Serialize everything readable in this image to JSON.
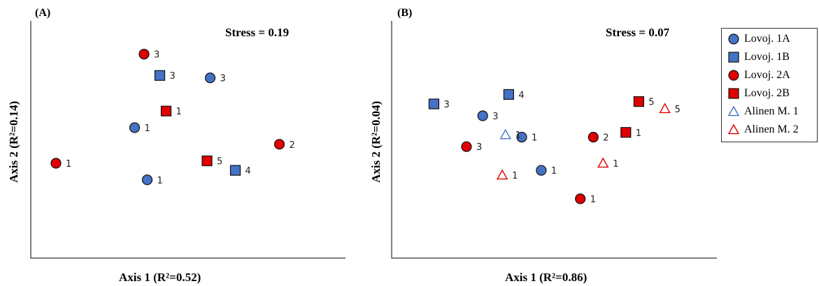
{
  "panels": [
    {
      "label": "(A)",
      "stress": "Stress = 0.19",
      "xlabel": "Axis 1 (R²=0.52)",
      "ylabel": "Axis 2 (R²=0.14)"
    },
    {
      "label": "(B)",
      "stress": "Stress = 0.07",
      "xlabel": "Axis 1 (R²=0.86)",
      "ylabel": "Axis 2 (R²=0.04)"
    }
  ],
  "legend": [
    {
      "label": "Lovoj. 1A",
      "shape": "circle",
      "color": "#4472C4",
      "filled": true
    },
    {
      "label": "Lovoj. 1B",
      "shape": "square",
      "color": "#4472C4",
      "filled": true
    },
    {
      "label": "Lovoj. 2A",
      "shape": "circle",
      "color": "#E00000",
      "filled": true
    },
    {
      "label": "Lovoj. 2B",
      "shape": "square",
      "color": "#E00000",
      "filled": true
    },
    {
      "label": "Alinen M. 1",
      "shape": "triangle",
      "color": "#4472C4",
      "filled": false
    },
    {
      "label": "Alinen M. 2",
      "shape": "triangle",
      "color": "#E00000",
      "filled": false
    }
  ],
  "chart_data": [
    {
      "type": "scatter",
      "title": "(A)",
      "annotation": "Stress = 0.19",
      "xlabel": "Axis 1 (R²=0.52)",
      "ylabel": "Axis 2 (R²=0.14)",
      "xlim": [
        0,
        100
      ],
      "ylim": [
        0,
        100
      ],
      "grid": false,
      "series": [
        {
          "name": "Lovoj. 1A",
          "points": [
            {
              "x": 57,
              "y": 76,
              "label": "3"
            },
            {
              "x": 33,
              "y": 55,
              "label": "1"
            },
            {
              "x": 37,
              "y": 33,
              "label": "1"
            }
          ]
        },
        {
          "name": "Lovoj. 1B",
          "points": [
            {
              "x": 41,
              "y": 77,
              "label": "3"
            },
            {
              "x": 65,
              "y": 37,
              "label": "4"
            }
          ]
        },
        {
          "name": "Lovoj. 2A",
          "points": [
            {
              "x": 36,
              "y": 86,
              "label": "3"
            },
            {
              "x": 8,
              "y": 40,
              "label": "1"
            },
            {
              "x": 79,
              "y": 48,
              "label": "2"
            }
          ]
        },
        {
          "name": "Lovoj. 2B",
          "points": [
            {
              "x": 43,
              "y": 62,
              "label": "1"
            },
            {
              "x": 56,
              "y": 41,
              "label": "5"
            }
          ]
        }
      ]
    },
    {
      "type": "scatter",
      "title": "(B)",
      "annotation": "Stress = 0.07",
      "xlabel": "Axis 1 (R²=0.86)",
      "ylabel": "Axis 2 (R²=0.04)",
      "xlim": [
        0,
        100
      ],
      "ylim": [
        0,
        100
      ],
      "grid": false,
      "legend_position": "right",
      "series": [
        {
          "name": "Lovoj. 1A",
          "points": [
            {
              "x": 28,
              "y": 60,
              "label": "3"
            },
            {
              "x": 40,
              "y": 51,
              "label": "1"
            },
            {
              "x": 46,
              "y": 37,
              "label": "1"
            }
          ]
        },
        {
          "name": "Lovoj. 1B",
          "points": [
            {
              "x": 13,
              "y": 65,
              "label": "3"
            },
            {
              "x": 36,
              "y": 69,
              "label": "4"
            }
          ]
        },
        {
          "name": "Lovoj. 2A",
          "points": [
            {
              "x": 23,
              "y": 47,
              "label": "3"
            },
            {
              "x": 62,
              "y": 51,
              "label": "2"
            },
            {
              "x": 58,
              "y": 25,
              "label": "1"
            }
          ]
        },
        {
          "name": "Lovoj. 2B",
          "points": [
            {
              "x": 72,
              "y": 53,
              "label": "1"
            },
            {
              "x": 76,
              "y": 66,
              "label": "5"
            }
          ]
        },
        {
          "name": "Alinen M. 1",
          "points": [
            {
              "x": 35,
              "y": 52,
              "label": "1"
            }
          ]
        },
        {
          "name": "Alinen M. 2",
          "points": [
            {
              "x": 34,
              "y": 35,
              "label": "1"
            },
            {
              "x": 65,
              "y": 40,
              "label": "1"
            },
            {
              "x": 84,
              "y": 63,
              "label": "5"
            }
          ]
        }
      ]
    }
  ]
}
